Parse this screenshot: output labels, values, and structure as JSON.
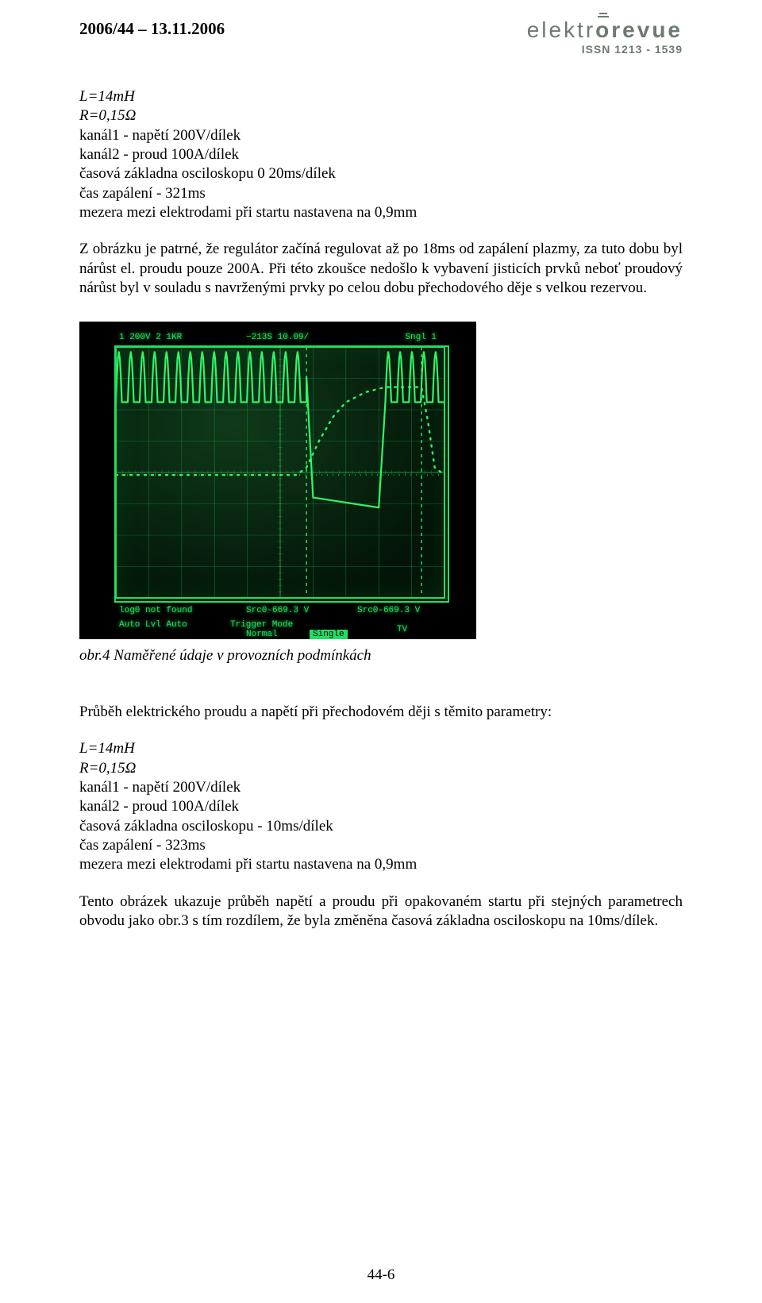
{
  "header": {
    "issue": "2006/44 – 13.11.2006",
    "brand_thin": "elektr",
    "brand_bold": "revue",
    "issn": "ISSN 1213 - 1539"
  },
  "params1": {
    "l": "L=14mH",
    "r": "R=0,15Ω",
    "ch1": "kanál1 - napětí 200V/dílek",
    "ch2": "kanál2 - proud 100A/dílek",
    "timebase": "časová základna osciloskopu 0 20ms/dílek",
    "ignition": "čas zapálení - 321ms",
    "gap": "mezera mezi elektrodami při startu nastavena na 0,9mm"
  },
  "para1": "Z obrázku je patrné, že regulátor začíná regulovat až po 18ms od zapálení plazmy, za tuto dobu byl nárůst el. proudu pouze 200A. Při této zkoušce nedošlo k vybavení jisticích prvků neboť proudový nárůst byl v souladu s navrženými prvky po celou dobu přechodového děje s velkou rezervou.",
  "figure": {
    "caption": "obr.4 Naměřené údaje v provozních podmínkách",
    "grid_color": "#1fb050",
    "trace_color": "#34ff6b",
    "screen_border_color": "#1fe060",
    "background_color": "#000000",
    "top_info": {
      "left": "1 200V  2 1KR",
      "center": " −213S   10.09/",
      "right": "Sngl  1"
    },
    "bottom_info": {
      "l1a": "log0 not found",
      "l1b": "Src0-669.3 V",
      "l1c": "Src0-669.3 V",
      "l2a": "Auto Lvl    Auto",
      "l2b": "Trigger Mode",
      "l2c": "Normal",
      "l2d": "Single",
      "l2e": "TV"
    },
    "chart": {
      "grid_cols": 10,
      "grid_rows": 8,
      "ch1_series": {
        "comment": "Voltage trace — high-freq ripple top, collapses ~60% across, rises back right edge",
        "segments": [
          {
            "type": "ripple",
            "x0": 0.0,
            "x1": 0.58,
            "baseline_y": 0.12,
            "amp": 0.1,
            "cycles": 16
          },
          {
            "type": "line",
            "points": [
              [
                0.58,
                0.12
              ],
              [
                0.6,
                0.6
              ],
              [
                0.8,
                0.64
              ],
              [
                0.82,
                0.22
              ]
            ]
          },
          {
            "type": "ripple",
            "x0": 0.82,
            "x1": 1.0,
            "baseline_y": 0.12,
            "amp": 0.1,
            "cycles": 5
          }
        ]
      },
      "ch2_series": {
        "comment": "Current trace — flat mid, dotted rise ~60% → near-top, flat, drop at far right",
        "points": [
          [
            0.0,
            0.51
          ],
          [
            0.55,
            0.51
          ],
          [
            0.58,
            0.48
          ],
          [
            0.62,
            0.37
          ],
          [
            0.66,
            0.28
          ],
          [
            0.7,
            0.22
          ],
          [
            0.76,
            0.18
          ],
          [
            0.82,
            0.16
          ],
          [
            0.93,
            0.16
          ],
          [
            0.95,
            0.3
          ],
          [
            0.97,
            0.48
          ],
          [
            1.0,
            0.51
          ]
        ],
        "style": "dotted"
      },
      "vcursors_x": [
        0.58,
        0.93
      ],
      "hcursor_y": 0.51
    }
  },
  "intro2": "Průběh elektrického proudu a napětí při přechodovém ději s těmito parametry:",
  "params2": {
    "l": "L=14mH",
    "r": "R=0,15Ω",
    "ch1": "kanál1 - napětí 200V/dílek",
    "ch2": "kanál2 - proud 100A/dílek",
    "timebase": "časová základna osciloskopu - 10ms/dílek",
    "ignition": "čas zapálení - 323ms",
    "gap": "mezera mezi elektrodami při startu nastavena na 0,9mm"
  },
  "para2": "Tento obrázek ukazuje průběh napětí a proudu při opakovaném startu při stejných parametrech obvodu jako obr.3 s tím rozdílem, že byla změněna časová základna osciloskopu na 10ms/dílek.",
  "pagenum": "44-6",
  "colors": {
    "text": "#000000",
    "brand": "#6d7a70",
    "page_bg": "#ffffff"
  }
}
